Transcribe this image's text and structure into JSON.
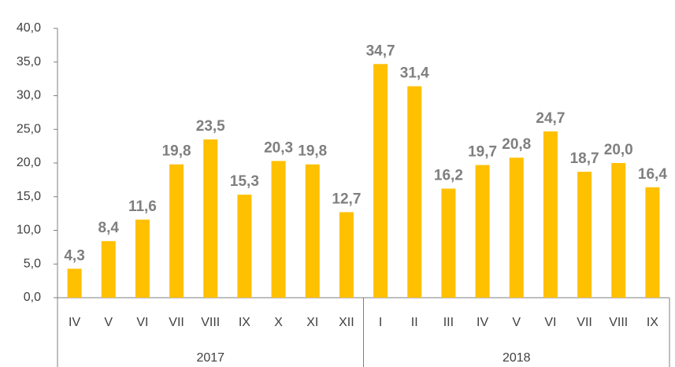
{
  "chart_data": {
    "type": "bar",
    "color": "#FFC000",
    "ylim": [
      0,
      40
    ],
    "yticks": [
      {
        "value": 0,
        "label": "0,0"
      },
      {
        "value": 5,
        "label": "5,0"
      },
      {
        "value": 10,
        "label": "10,0"
      },
      {
        "value": 15,
        "label": "15,0"
      },
      {
        "value": 20,
        "label": "20,0"
      },
      {
        "value": 25,
        "label": "25,0"
      },
      {
        "value": 30,
        "label": "30,0"
      },
      {
        "value": 35,
        "label": "35,0"
      },
      {
        "value": 40,
        "label": "40,0"
      }
    ],
    "groups": [
      {
        "name": "2017",
        "categories": [
          "IV",
          "V",
          "VI",
          "VII",
          "VIII",
          "IX",
          "X",
          "XI",
          "XII"
        ],
        "values": [
          4.3,
          8.4,
          11.6,
          19.8,
          23.5,
          15.3,
          20.3,
          19.8,
          12.7
        ],
        "value_labels": [
          "4,3",
          "8,4",
          "11,6",
          "19,8",
          "23,5",
          "15,3",
          "20,3",
          "19,8",
          "12,7"
        ]
      },
      {
        "name": "2018",
        "categories": [
          "I",
          "II",
          "III",
          "IV",
          "V",
          "VI",
          "VII",
          "VIII",
          "IX"
        ],
        "values": [
          34.7,
          31.4,
          16.2,
          19.7,
          20.8,
          24.7,
          18.7,
          20.0,
          16.4
        ],
        "value_labels": [
          "34,7",
          "31,4",
          "16,2",
          "19,7",
          "20,8",
          "24,7",
          "18,7",
          "20,0",
          "16,4"
        ]
      }
    ]
  }
}
